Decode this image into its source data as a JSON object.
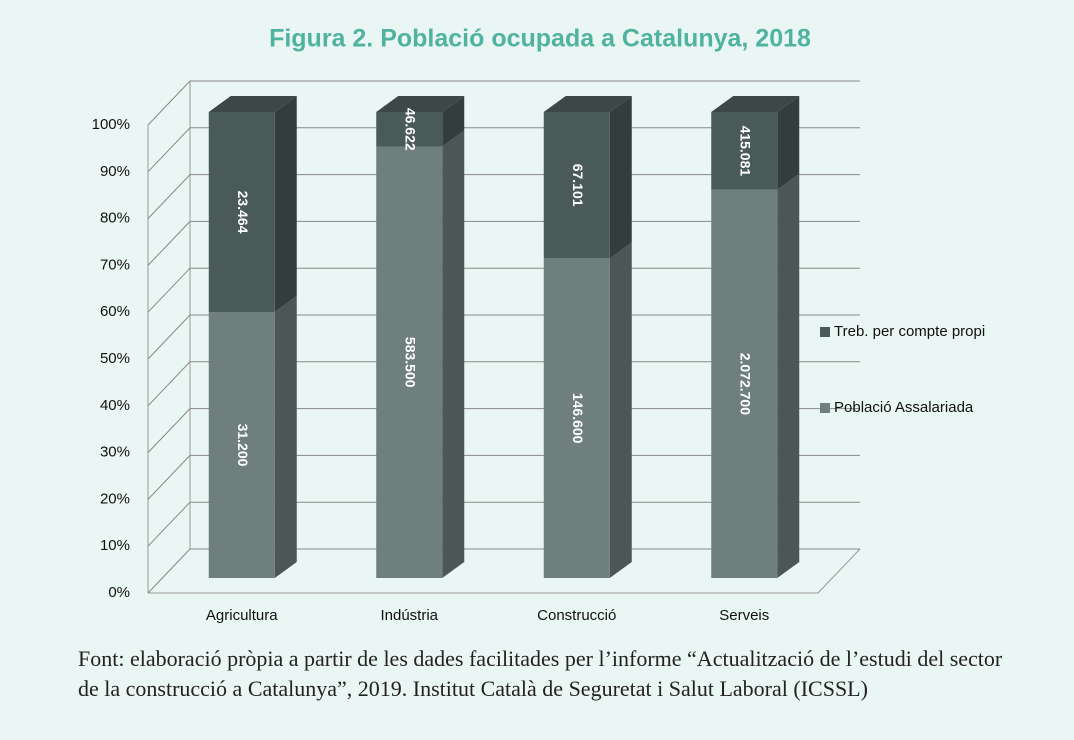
{
  "chart_data": {
    "type": "bar",
    "stacking": "percent",
    "title": "Figura 2. Població ocupada a Catalunya, 2018",
    "categories": [
      "Agricultura",
      "Indústria",
      "Construcció",
      "Serveis"
    ],
    "series": [
      {
        "name": "Població Assalariada",
        "color": "#6e7f7d",
        "values": [
          31200,
          583500,
          146600,
          2072700
        ],
        "value_labels": [
          "31.200",
          "583.500",
          "146.600",
          "2.072.700"
        ]
      },
      {
        "name": "Treb. per compte propi",
        "color": "#4a5a58",
        "values": [
          23464,
          46622,
          67101,
          415081
        ],
        "value_labels": [
          "23.464",
          "46.622",
          "67.101",
          "415.081"
        ]
      }
    ],
    "ylim": [
      0,
      100
    ],
    "yticks": [
      {
        "value": 0,
        "label": "0%"
      },
      {
        "value": 10,
        "label": "10%"
      },
      {
        "value": 20,
        "label": "20%"
      },
      {
        "value": 30,
        "label": "30%"
      },
      {
        "value": 40,
        "label": "40%"
      },
      {
        "value": 50,
        "label": "50%"
      },
      {
        "value": 60,
        "label": "60%"
      },
      {
        "value": 70,
        "label": "70%"
      },
      {
        "value": 80,
        "label": "80%"
      },
      {
        "value": 90,
        "label": "90%"
      },
      {
        "value": 100,
        "label": "100%"
      }
    ],
    "grid": true,
    "legend": "right",
    "source": "Font: elaboració pròpia a partir de les dades facilitades per l’informe “Actualització de l’estudi del sector de la construcció a Catalunya”, 2019. Institut Català de Seguretat i Salut Laboral (ICSSL)"
  }
}
